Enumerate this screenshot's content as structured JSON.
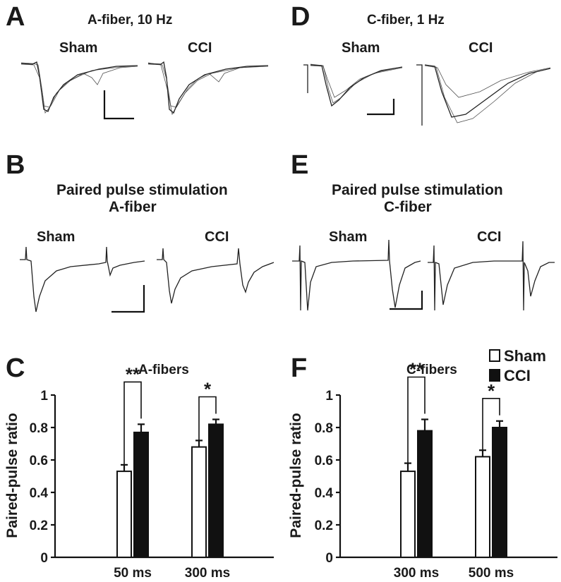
{
  "panels": {
    "A": {
      "letter": "A",
      "title": "A-fiber, 10 Hz",
      "groups": [
        "Sham",
        "CCI"
      ]
    },
    "B": {
      "letter": "B",
      "title": "Paired pulse stimulation",
      "subtitle": "A-fiber",
      "groups": [
        "Sham",
        "CCI"
      ]
    },
    "C": {
      "letter": "C"
    },
    "D": {
      "letter": "D",
      "title": "C-fiber, 1 Hz",
      "groups": [
        "Sham",
        "CCI"
      ]
    },
    "E": {
      "letter": "E",
      "title": "Paired pulse stimulation",
      "subtitle": "C-fiber",
      "groups": [
        "Sham",
        "CCI"
      ]
    },
    "F": {
      "letter": "F"
    }
  },
  "legend": {
    "items": [
      {
        "label": "Sham",
        "color": "#ffffff"
      },
      {
        "label": "CCI",
        "color": "#111111"
      }
    ]
  },
  "chart_data": [
    {
      "type": "bar",
      "title": "A-fibers",
      "ylabel": "Paired-pulse ratio",
      "xlabel": "",
      "categories": [
        "50 ms",
        "300 ms"
      ],
      "ylim": [
        0,
        1
      ],
      "yticks": [
        "0",
        "0.2",
        "0.4",
        "0.6",
        "0.8",
        "1"
      ],
      "series": [
        {
          "name": "Sham",
          "values": [
            0.53,
            0.68
          ],
          "errors": [
            0.04,
            0.04
          ]
        },
        {
          "name": "CCI",
          "values": [
            0.77,
            0.82
          ],
          "errors": [
            0.05,
            0.03
          ]
        }
      ],
      "significance": [
        "**",
        "*"
      ],
      "grid": false
    },
    {
      "type": "bar",
      "title": "C-fibers",
      "ylabel": "Paired-pulse ratio",
      "xlabel": "",
      "categories": [
        "300 ms",
        "500 ms"
      ],
      "ylim": [
        0,
        1
      ],
      "yticks": [
        "0",
        "0.2",
        "0.4",
        "0.6",
        "0.8",
        "1"
      ],
      "series": [
        {
          "name": "Sham",
          "values": [
            0.53,
            0.62
          ],
          "errors": [
            0.05,
            0.04
          ]
        },
        {
          "name": "CCI",
          "values": [
            0.78,
            0.8
          ],
          "errors": [
            0.07,
            0.04
          ]
        }
      ],
      "significance": [
        "**",
        "*"
      ],
      "grid": false
    }
  ]
}
